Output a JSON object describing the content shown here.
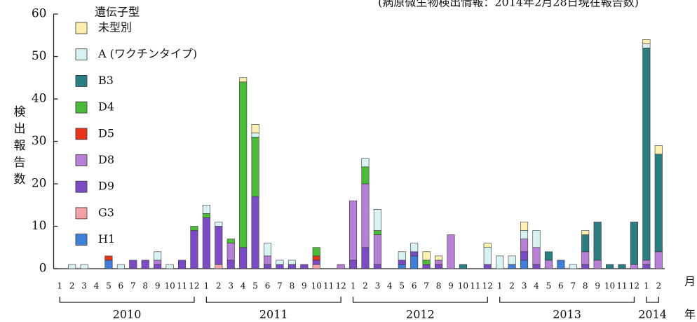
{
  "chart_data": {
    "type": "stacked_bar",
    "title": "(病原微生物検出情報：2014年2月28日現在報告数)",
    "y_label": "検出報告数",
    "x_unit": "月",
    "year_unit": "年",
    "legend_title": "遺伝子型",
    "year_labels": [
      "2010",
      "2011",
      "2012",
      "2013",
      "2014"
    ],
    "categories": [
      "1",
      "2",
      "3",
      "4",
      "5",
      "6",
      "7",
      "8",
      "9",
      "10",
      "11",
      "12",
      "1",
      "2",
      "3",
      "4",
      "5",
      "6",
      "7",
      "8",
      "9",
      "10",
      "11",
      "12",
      "1",
      "2",
      "3",
      "4",
      "5",
      "6",
      "7",
      "8",
      "9",
      "10",
      "11",
      "12",
      "1",
      "2",
      "3",
      "4",
      "5",
      "6",
      "7",
      "8",
      "9",
      "10",
      "11",
      "12",
      "1",
      "2"
    ],
    "ylim": [
      0,
      60
    ],
    "yticks": [
      0,
      10,
      20,
      30,
      40,
      50,
      60
    ],
    "series": [
      {
        "name": "H1",
        "color": "#3f7fd8",
        "values": [
          0,
          0,
          0,
          0,
          2,
          0,
          0,
          0,
          0,
          0,
          0,
          0,
          0,
          0,
          0,
          0,
          0,
          0,
          0,
          0,
          0,
          0,
          0,
          0,
          0,
          0,
          0,
          0,
          1,
          3,
          0,
          0,
          0,
          0,
          0,
          0,
          0,
          1,
          2,
          0,
          0,
          2,
          0,
          0,
          0,
          0,
          0,
          0,
          0,
          0
        ]
      },
      {
        "name": "G3",
        "color": "#f4a0a8",
        "values": [
          0,
          0,
          0,
          0,
          0,
          0,
          0,
          0,
          0,
          0,
          0,
          0,
          0,
          1,
          0,
          0,
          0,
          0,
          0,
          0,
          0,
          1,
          0,
          0,
          0,
          0,
          0,
          0,
          0,
          0,
          0,
          0,
          0,
          0,
          0,
          0,
          0,
          0,
          0,
          0,
          0,
          0,
          0,
          0,
          0,
          0,
          0,
          0,
          0,
          0
        ]
      },
      {
        "name": "D9",
        "color": "#7b4bc4",
        "values": [
          0,
          0,
          0,
          0,
          0,
          0,
          2,
          2,
          1,
          0,
          2,
          9,
          12,
          9,
          2,
          5,
          17,
          1,
          1,
          1,
          1,
          1,
          0,
          0,
          2,
          5,
          1,
          0,
          1,
          1,
          1,
          1,
          0,
          0,
          0,
          1,
          0,
          0,
          2,
          1,
          0,
          0,
          0,
          1,
          0,
          0,
          0,
          0,
          1,
          0
        ]
      },
      {
        "name": "D8",
        "color": "#b77fd6",
        "values": [
          0,
          0,
          0,
          0,
          0,
          0,
          0,
          0,
          1,
          0,
          0,
          0,
          0,
          0,
          4,
          0,
          0,
          2,
          0,
          0,
          0,
          0,
          0,
          1,
          14,
          15,
          7,
          0,
          0,
          0,
          0,
          1,
          8,
          0,
          0,
          0,
          0,
          0,
          3,
          4,
          2,
          0,
          0,
          3,
          2,
          0,
          0,
          1,
          1,
          4
        ]
      },
      {
        "name": "D5",
        "color": "#e8341c",
        "values": [
          0,
          0,
          0,
          0,
          1,
          0,
          0,
          0,
          0,
          0,
          0,
          0,
          0,
          0,
          0,
          0,
          0,
          0,
          0,
          0,
          0,
          1,
          0,
          0,
          0,
          0,
          0,
          0,
          0,
          0,
          0,
          0,
          0,
          0,
          0,
          0,
          0,
          0,
          0,
          0,
          0,
          0,
          0,
          0,
          0,
          0,
          0,
          0,
          0,
          0
        ]
      },
      {
        "name": "D4",
        "color": "#4cbb3a",
        "values": [
          0,
          0,
          0,
          0,
          0,
          0,
          0,
          0,
          0,
          0,
          0,
          1,
          1,
          0,
          1,
          39,
          14,
          0,
          0,
          0,
          0,
          2,
          0,
          0,
          0,
          4,
          1,
          0,
          0,
          0,
          1,
          0,
          0,
          0,
          0,
          0,
          0,
          0,
          0,
          0,
          0,
          0,
          0,
          0,
          0,
          0,
          0,
          0,
          0,
          0
        ]
      },
      {
        "name": "B3",
        "color": "#2a7d80",
        "values": [
          0,
          0,
          0,
          0,
          0,
          0,
          0,
          0,
          0,
          0,
          0,
          0,
          0,
          0,
          0,
          0,
          0,
          0,
          0,
          0,
          0,
          0,
          0,
          0,
          0,
          0,
          0,
          0,
          0,
          0,
          0,
          0,
          0,
          1,
          0,
          0,
          0,
          0,
          0,
          0,
          2,
          0,
          0,
          4,
          9,
          1,
          1,
          10,
          50,
          23
        ]
      },
      {
        "name": "A (ワクチンタイプ)",
        "color": "#d8f2f4",
        "values": [
          0,
          1,
          1,
          0,
          0,
          1,
          0,
          0,
          2,
          1,
          0,
          0,
          2,
          1,
          0,
          0,
          1,
          3,
          1,
          1,
          0,
          0,
          0,
          0,
          0,
          2,
          5,
          0,
          2,
          2,
          0,
          0,
          0,
          0,
          0,
          4,
          3,
          2,
          2,
          4,
          0,
          0,
          1,
          0,
          0,
          0,
          0,
          0,
          1,
          0
        ]
      },
      {
        "name": "未型別",
        "color": "#fdf0b0",
        "values": [
          0,
          0,
          0,
          0,
          0,
          0,
          0,
          0,
          0,
          0,
          0,
          0,
          0,
          0,
          0,
          1,
          2,
          0,
          0,
          0,
          0,
          0,
          0,
          0,
          0,
          0,
          0,
          0,
          0,
          0,
          2,
          1,
          0,
          0,
          0,
          1,
          0,
          0,
          2,
          0,
          0,
          0,
          0,
          1,
          0,
          0,
          0,
          0,
          1,
          2
        ]
      }
    ]
  }
}
